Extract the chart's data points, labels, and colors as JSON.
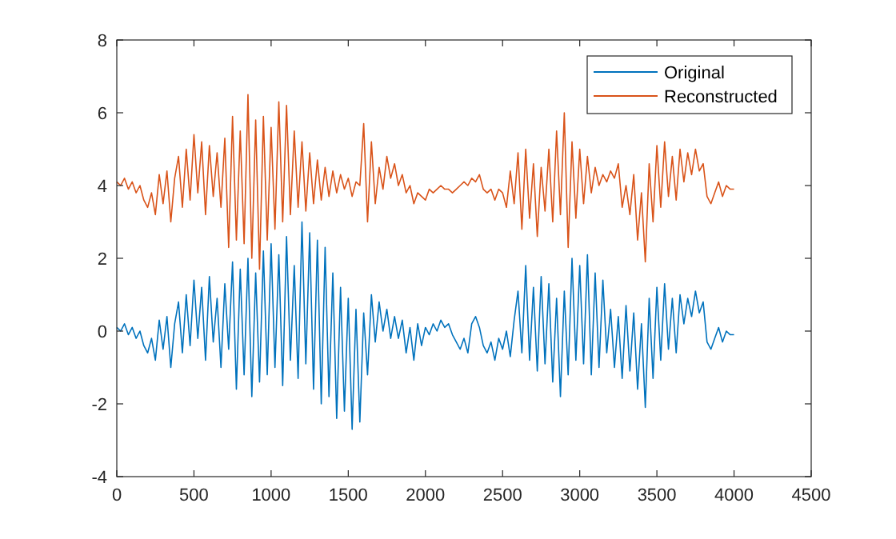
{
  "chart_data": {
    "type": "line",
    "x": [
      0,
      25,
      50,
      75,
      100,
      125,
      150,
      175,
      200,
      225,
      250,
      275,
      300,
      325,
      350,
      375,
      400,
      425,
      450,
      475,
      500,
      525,
      550,
      575,
      600,
      625,
      650,
      675,
      700,
      725,
      750,
      775,
      800,
      825,
      850,
      875,
      900,
      925,
      950,
      975,
      1000,
      1025,
      1050,
      1075,
      1100,
      1125,
      1150,
      1175,
      1200,
      1225,
      1250,
      1275,
      1300,
      1325,
      1350,
      1375,
      1400,
      1425,
      1450,
      1475,
      1500,
      1525,
      1550,
      1575,
      1600,
      1625,
      1650,
      1675,
      1700,
      1725,
      1750,
      1775,
      1800,
      1825,
      1850,
      1875,
      1900,
      1925,
      1950,
      1975,
      2000,
      2025,
      2050,
      2075,
      2100,
      2125,
      2150,
      2175,
      2200,
      2225,
      2250,
      2275,
      2300,
      2325,
      2350,
      2375,
      2400,
      2425,
      2450,
      2475,
      2500,
      2525,
      2550,
      2575,
      2600,
      2625,
      2650,
      2675,
      2700,
      2725,
      2750,
      2775,
      2800,
      2825,
      2850,
      2875,
      2900,
      2925,
      2950,
      2975,
      3000,
      3025,
      3050,
      3075,
      3100,
      3125,
      3150,
      3175,
      3200,
      3225,
      3250,
      3275,
      3300,
      3325,
      3350,
      3375,
      3400,
      3425,
      3450,
      3475,
      3500,
      3525,
      3550,
      3575,
      3600,
      3625,
      3650,
      3675,
      3700,
      3725,
      3750,
      3775,
      3800,
      3825,
      3850,
      3875,
      3900,
      3925,
      3950,
      3975,
      4000
    ],
    "series": [
      {
        "name": "Original",
        "color": "#0072bd",
        "values": [
          0.1,
          0.0,
          0.2,
          -0.1,
          0.1,
          -0.2,
          0.0,
          -0.4,
          -0.6,
          -0.2,
          -0.8,
          0.3,
          -0.5,
          0.4,
          -1.0,
          0.2,
          0.8,
          -0.6,
          1.0,
          -0.4,
          1.4,
          -0.2,
          1.2,
          -0.8,
          1.5,
          -0.3,
          0.9,
          -1.0,
          1.3,
          -0.5,
          1.9,
          -1.6,
          1.7,
          -1.2,
          2.0,
          -1.8,
          1.6,
          -1.4,
          2.2,
          -1.2,
          2.4,
          -1.0,
          2.1,
          -1.5,
          2.6,
          -0.8,
          1.8,
          -1.3,
          3.0,
          -0.9,
          2.7,
          -1.6,
          2.5,
          -2.0,
          2.3,
          -1.8,
          1.6,
          -2.4,
          1.2,
          -2.2,
          0.9,
          -2.7,
          0.6,
          -2.5,
          0.5,
          -1.2,
          1.0,
          -0.3,
          0.8,
          0.0,
          0.6,
          -0.2,
          0.4,
          -0.2,
          0.3,
          -0.6,
          0.1,
          -0.8,
          0.2,
          -0.4,
          0.1,
          -0.1,
          0.2,
          0.0,
          0.3,
          0.1,
          0.2,
          -0.1,
          -0.3,
          -0.5,
          -0.2,
          -0.6,
          0.2,
          0.4,
          0.1,
          -0.4,
          -0.6,
          -0.3,
          -0.8,
          -0.2,
          -0.5,
          0.0,
          -0.7,
          0.3,
          1.1,
          -0.6,
          1.8,
          -0.8,
          1.2,
          -1.1,
          1.5,
          -0.9,
          1.3,
          -1.4,
          0.9,
          -1.8,
          1.1,
          -1.2,
          2.0,
          -0.8,
          1.8,
          -0.9,
          2.1,
          -1.2,
          1.6,
          -1.0,
          1.4,
          -0.6,
          0.6,
          -1.0,
          0.4,
          -1.3,
          0.7,
          -1.1,
          0.5,
          -1.6,
          0.2,
          -2.1,
          0.9,
          -1.3,
          1.2,
          -0.8,
          1.3,
          -0.5,
          0.9,
          -0.6,
          1.0,
          0.2,
          0.9,
          0.4,
          1.1,
          0.5,
          0.8,
          -0.3,
          -0.5,
          -0.2,
          0.1,
          -0.3,
          0.0,
          -0.1,
          -0.1
        ]
      },
      {
        "name": "Reconstructed",
        "color": "#d95319",
        "values": [
          4.1,
          4.0,
          4.2,
          3.9,
          4.1,
          3.8,
          4.0,
          3.6,
          3.4,
          3.8,
          3.2,
          4.3,
          3.5,
          4.4,
          3.0,
          4.2,
          4.8,
          3.4,
          5.0,
          3.6,
          5.4,
          3.8,
          5.2,
          3.2,
          5.1,
          3.7,
          4.9,
          3.4,
          5.3,
          2.3,
          5.9,
          2.5,
          5.5,
          2.4,
          6.5,
          2.0,
          5.8,
          1.7,
          5.9,
          2.5,
          5.6,
          2.8,
          6.3,
          3.0,
          6.2,
          3.2,
          5.5,
          3.4,
          5.2,
          3.3,
          4.9,
          3.5,
          4.7,
          3.6,
          4.5,
          3.7,
          4.4,
          3.8,
          4.3,
          3.9,
          4.2,
          3.7,
          4.1,
          4.0,
          5.7,
          3.0,
          5.2,
          3.5,
          4.5,
          3.9,
          4.8,
          4.2,
          4.6,
          4.0,
          4.3,
          3.8,
          4.0,
          3.5,
          3.8,
          3.7,
          3.6,
          3.9,
          3.8,
          3.9,
          4.0,
          3.9,
          3.9,
          3.8,
          3.9,
          4.0,
          4.1,
          4.0,
          4.2,
          4.1,
          4.3,
          3.9,
          3.8,
          3.9,
          3.6,
          3.9,
          3.8,
          3.4,
          4.4,
          3.5,
          4.9,
          2.8,
          5.0,
          3.1,
          4.6,
          2.6,
          4.5,
          3.3,
          5.0,
          3.0,
          5.5,
          3.2,
          6.0,
          2.3,
          5.2,
          3.1,
          5.0,
          3.5,
          4.8,
          3.8,
          4.5,
          4.0,
          4.3,
          4.1,
          4.4,
          4.2,
          4.6,
          3.4,
          4.0,
          3.2,
          4.3,
          2.5,
          3.8,
          1.9,
          4.6,
          3.0,
          5.1,
          3.4,
          5.2,
          3.7,
          4.8,
          3.6,
          5.0,
          4.1,
          4.9,
          4.3,
          5.0,
          4.4,
          4.6,
          3.7,
          3.5,
          3.8,
          4.1,
          3.7,
          4.0,
          3.9,
          3.9
        ]
      }
    ],
    "xlim": [
      0,
      4500
    ],
    "xticks": [
      0,
      500,
      1000,
      1500,
      2000,
      2500,
      3000,
      3500,
      4000,
      4500
    ],
    "ylim": [
      -4,
      8
    ],
    "yticks": [
      -4,
      -2,
      0,
      2,
      4,
      6,
      8
    ],
    "legend": "top right",
    "line_style": "solid",
    "marker": "none"
  }
}
